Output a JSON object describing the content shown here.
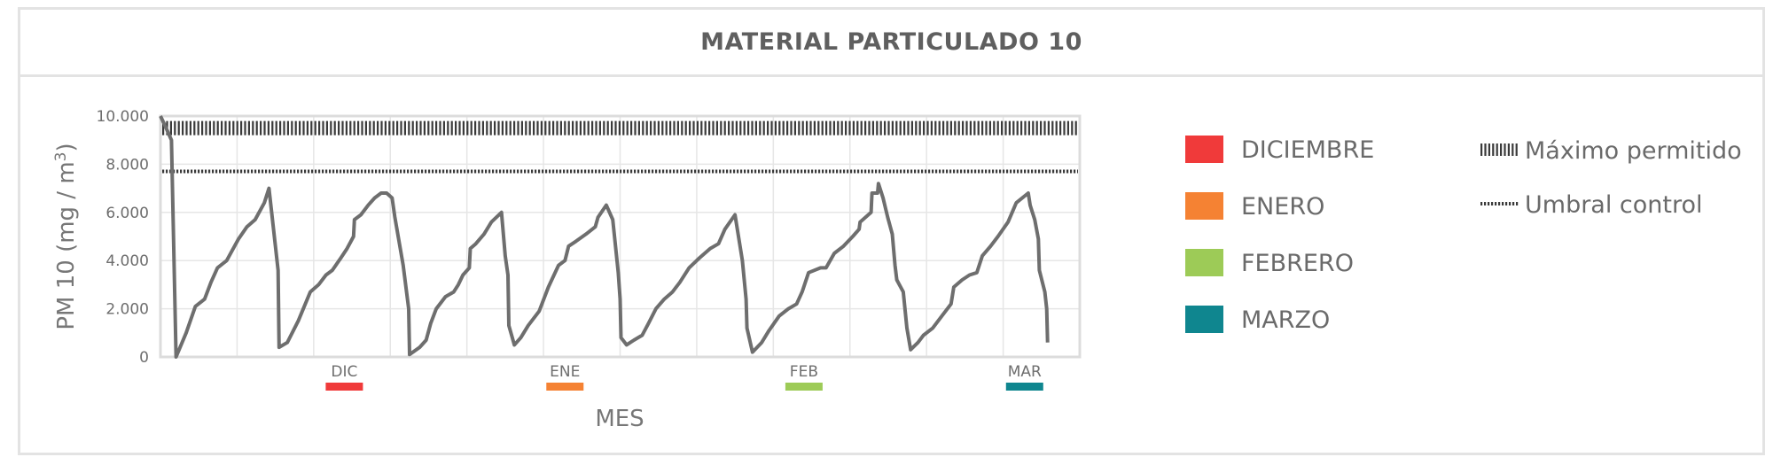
{
  "title": "MATERIAL PARTICULADO 10",
  "chart_data": {
    "type": "line",
    "title": "MATERIAL PARTICULADO 10",
    "ylabel": "PM 10 (mg / m",
    "ylabel_sup": "3",
    "ylabel_end": ")",
    "xlabel": "MES",
    "ylim": [
      0,
      10000
    ],
    "yticks": [
      0,
      2000,
      4000,
      6000,
      8000,
      10000
    ],
    "ytick_labels": [
      "0",
      "2.000",
      "4.000",
      "6.000",
      "8.000",
      "10.000"
    ],
    "grid": true,
    "months": [
      {
        "label": "DIC",
        "color": "#f03a3a",
        "pos": 0.2
      },
      {
        "label": "ENE",
        "color": "#f58233",
        "pos": 0.44
      },
      {
        "label": "FEB",
        "color": "#9dcb57",
        "pos": 0.7
      },
      {
        "label": "MAR",
        "color": "#0f868f",
        "pos": 0.94
      }
    ],
    "thresholds": [
      {
        "name": "Máximo permitido",
        "value": 9500,
        "style": "heavy-dotted"
      },
      {
        "name": "Umbral control",
        "value": 7700,
        "style": "dotted"
      }
    ],
    "series": [
      {
        "color": "#6e6e6e",
        "points": [
          [
            0.0,
            10000
          ],
          [
            0.005,
            9600
          ],
          [
            0.012,
            9000
          ],
          [
            0.017,
            0
          ],
          [
            0.028,
            1000
          ],
          [
            0.038,
            2100
          ],
          [
            0.048,
            2400
          ],
          [
            0.055,
            3100
          ],
          [
            0.062,
            3700
          ],
          [
            0.072,
            4000
          ],
          [
            0.085,
            4900
          ],
          [
            0.094,
            5400
          ],
          [
            0.103,
            5700
          ],
          [
            0.113,
            6400
          ],
          [
            0.118,
            7000
          ],
          [
            0.128,
            3600
          ],
          [
            0.129,
            400
          ],
          [
            0.138,
            600
          ],
          [
            0.15,
            1500
          ],
          [
            0.163,
            2700
          ],
          [
            0.172,
            3000
          ],
          [
            0.18,
            3400
          ],
          [
            0.187,
            3600
          ],
          [
            0.196,
            4100
          ],
          [
            0.203,
            4500
          ],
          [
            0.21,
            5000
          ],
          [
            0.211,
            5700
          ],
          [
            0.218,
            5900
          ],
          [
            0.226,
            6300
          ],
          [
            0.233,
            6600
          ],
          [
            0.24,
            6800
          ],
          [
            0.246,
            6800
          ],
          [
            0.252,
            6600
          ],
          [
            0.255,
            5800
          ],
          [
            0.264,
            3800
          ],
          [
            0.27,
            2000
          ],
          [
            0.271,
            100
          ],
          [
            0.282,
            400
          ],
          [
            0.289,
            700
          ],
          [
            0.294,
            1400
          ],
          [
            0.3,
            2000
          ],
          [
            0.31,
            2500
          ],
          [
            0.319,
            2700
          ],
          [
            0.324,
            3000
          ],
          [
            0.329,
            3400
          ],
          [
            0.336,
            3700
          ],
          [
            0.337,
            4500
          ],
          [
            0.343,
            4700
          ],
          [
            0.352,
            5100
          ],
          [
            0.36,
            5600
          ],
          [
            0.371,
            6000
          ],
          [
            0.373,
            5100
          ],
          [
            0.375,
            4200
          ],
          [
            0.378,
            3400
          ],
          [
            0.379,
            1300
          ],
          [
            0.385,
            500
          ],
          [
            0.392,
            800
          ],
          [
            0.4,
            1300
          ],
          [
            0.412,
            1900
          ],
          [
            0.422,
            2900
          ],
          [
            0.433,
            3800
          ],
          [
            0.44,
            4000
          ],
          [
            0.444,
            4600
          ],
          [
            0.452,
            4800
          ],
          [
            0.463,
            5100
          ],
          [
            0.473,
            5400
          ],
          [
            0.476,
            5800
          ],
          [
            0.485,
            6300
          ],
          [
            0.492,
            5700
          ],
          [
            0.498,
            3500
          ],
          [
            0.5,
            2400
          ],
          [
            0.501,
            800
          ],
          [
            0.507,
            500
          ],
          [
            0.515,
            700
          ],
          [
            0.524,
            900
          ],
          [
            0.531,
            1400
          ],
          [
            0.539,
            2000
          ],
          [
            0.548,
            2400
          ],
          [
            0.557,
            2700
          ],
          [
            0.565,
            3100
          ],
          [
            0.575,
            3700
          ],
          [
            0.586,
            4100
          ],
          [
            0.598,
            4500
          ],
          [
            0.607,
            4700
          ],
          [
            0.614,
            5300
          ],
          [
            0.625,
            5900
          ],
          [
            0.633,
            4000
          ],
          [
            0.637,
            2400
          ],
          [
            0.638,
            1200
          ],
          [
            0.644,
            200
          ],
          [
            0.654,
            600
          ],
          [
            0.662,
            1100
          ],
          [
            0.673,
            1700
          ],
          [
            0.683,
            2000
          ],
          [
            0.692,
            2200
          ],
          [
            0.698,
            2700
          ],
          [
            0.705,
            3500
          ],
          [
            0.718,
            3700
          ],
          [
            0.724,
            3700
          ],
          [
            0.733,
            4300
          ],
          [
            0.743,
            4600
          ],
          [
            0.753,
            5000
          ],
          [
            0.76,
            5300
          ],
          [
            0.761,
            5600
          ],
          [
            0.773,
            6000
          ],
          [
            0.774,
            6800
          ],
          [
            0.78,
            6800
          ],
          [
            0.781,
            7200
          ],
          [
            0.786,
            6600
          ],
          [
            0.791,
            5800
          ],
          [
            0.796,
            5100
          ],
          [
            0.799,
            3800
          ],
          [
            0.801,
            3200
          ],
          [
            0.808,
            2700
          ],
          [
            0.812,
            1200
          ],
          [
            0.816,
            300
          ],
          [
            0.824,
            600
          ],
          [
            0.83,
            900
          ],
          [
            0.84,
            1200
          ],
          [
            0.85,
            1700
          ],
          [
            0.86,
            2200
          ],
          [
            0.863,
            2900
          ],
          [
            0.872,
            3200
          ],
          [
            0.88,
            3400
          ],
          [
            0.888,
            3500
          ],
          [
            0.894,
            4200
          ],
          [
            0.903,
            4600
          ],
          [
            0.911,
            5000
          ],
          [
            0.922,
            5600
          ],
          [
            0.931,
            6400
          ],
          [
            0.944,
            6800
          ],
          [
            0.946,
            6300
          ],
          [
            0.951,
            5700
          ],
          [
            0.955,
            4900
          ],
          [
            0.956,
            3600
          ],
          [
            0.962,
            2700
          ],
          [
            0.964,
            2000
          ],
          [
            0.965,
            600
          ]
        ]
      }
    ],
    "legend": {
      "placement": "right",
      "months": [
        {
          "label": "DICIEMBRE",
          "color": "#f03a3a"
        },
        {
          "label": "ENERO",
          "color": "#f58233"
        },
        {
          "label": "FEBRERO",
          "color": "#9dcb57"
        },
        {
          "label": "MARZO",
          "color": "#0f868f"
        }
      ],
      "lines": [
        {
          "label": "Máximo permitido",
          "style": "heavy-dotted"
        },
        {
          "label": "Umbral control",
          "style": "dotted"
        }
      ]
    }
  }
}
